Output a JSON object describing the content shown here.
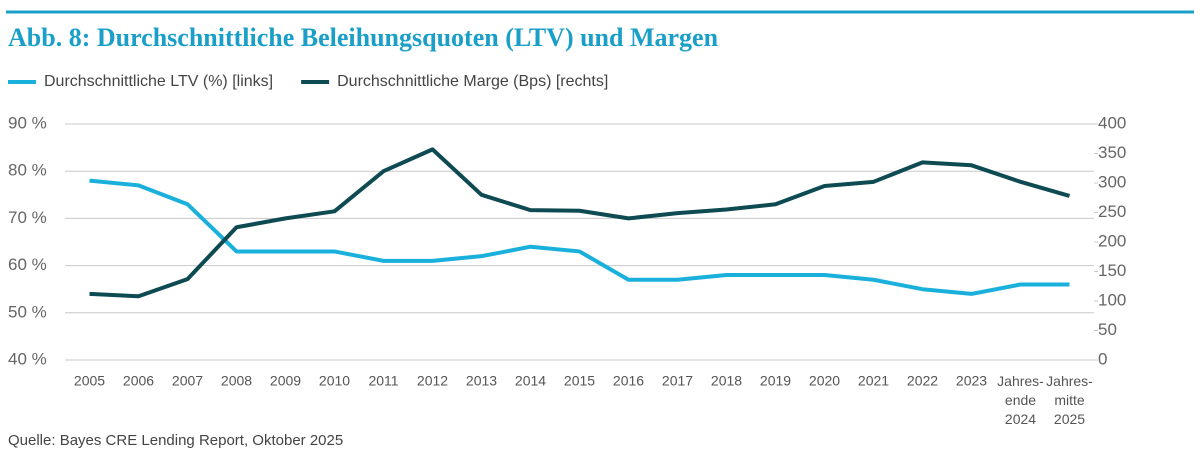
{
  "chart_data": {
    "type": "line",
    "title": "Abb. 8: Durchschnittliche Beleihungsquoten (LTV) und Margen",
    "source": "Quelle: Bayes CRE Lending Report, Oktober 2025",
    "categories": [
      "2005",
      "2006",
      "2007",
      "2008",
      "2009",
      "2010",
      "2011",
      "2012",
      "2013",
      "2014",
      "2015",
      "2016",
      "2017",
      "2018",
      "2019",
      "2020",
      "2021",
      "2022",
      "2023",
      "Jahres-\nende\n2024",
      "Jahres-\nmitte\n2025"
    ],
    "series": [
      {
        "name": "Durchschnittliche LTV (%) [links]",
        "color": "#1ab0dc",
        "axis": "y",
        "values": [
          78,
          77,
          73,
          63,
          63,
          63,
          61,
          61,
          62,
          64,
          63,
          57,
          57,
          58,
          58,
          58,
          57,
          55,
          54,
          56,
          56
        ]
      },
      {
        "name": "Durchschnittliche Marge (Bps) [rechts]",
        "color": "#0d4a52",
        "axis": "y2",
        "values": [
          112,
          108,
          137,
          225,
          240,
          252,
          320,
          357,
          280,
          254,
          253,
          240,
          249,
          255,
          264,
          295,
          302,
          335,
          330,
          302,
          278
        ]
      }
    ],
    "ylim": [
      40,
      90
    ],
    "yticks": [
      {
        "value": 40,
        "label": "40 %"
      },
      {
        "value": 50,
        "label": "50 %"
      },
      {
        "value": 60,
        "label": "60 %"
      },
      {
        "value": 70,
        "label": "70 %"
      },
      {
        "value": 80,
        "label": "80 %"
      },
      {
        "value": 90,
        "label": "90 %"
      }
    ],
    "y2lim": [
      0,
      400
    ],
    "y2ticks": [
      0,
      50,
      100,
      150,
      200,
      250,
      300,
      350,
      400
    ],
    "grid": true
  }
}
